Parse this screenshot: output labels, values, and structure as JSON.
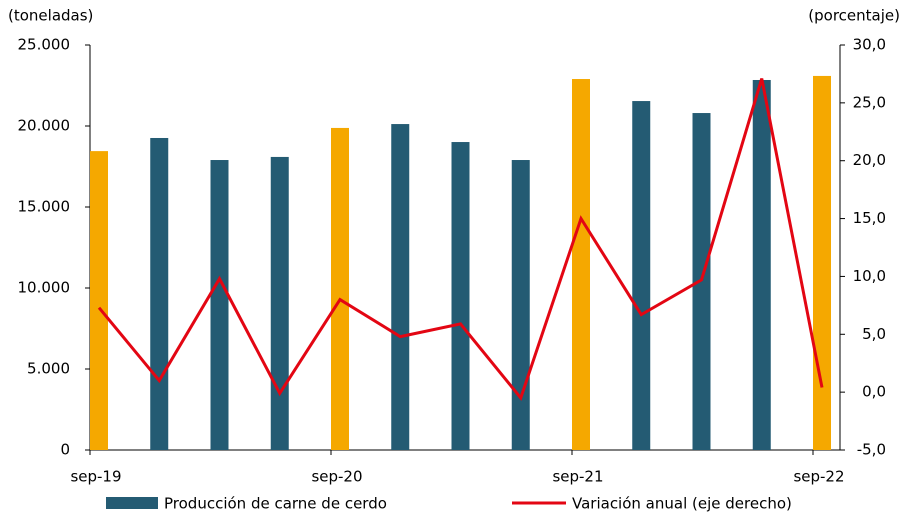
{
  "chart_data": {
    "type": "bar-line",
    "y_label": "(toneladas)",
    "y2_label": "(porcentaje)",
    "categories": [
      "sep-19",
      null,
      null,
      null,
      "sep-20",
      null,
      null,
      null,
      "sep-21",
      null,
      null,
      null,
      "sep-22"
    ],
    "series": [
      {
        "name": "Producción de carne de cerdo",
        "type": "bar",
        "color": "#245b73",
        "bar_colors": [
          "#f5a800",
          "#245b73",
          "#245b73",
          "#245b73",
          "#f5a800",
          "#245b73",
          "#245b73",
          "#245b73",
          "#f5a800",
          "#245b73",
          "#245b73",
          "#245b73",
          "#f5a800"
        ],
        "values": [
          18450,
          19260,
          17900,
          18090,
          19880,
          20120,
          19010,
          17900,
          22900,
          21540,
          20800,
          22840,
          23090
        ]
      },
      {
        "name": "Variación anual (eje derecho)",
        "type": "line",
        "color": "#e30613",
        "axis": "y2",
        "values": [
          7.3,
          1.0,
          9.8,
          -0.1,
          8.0,
          4.8,
          5.9,
          -0.5,
          15.0,
          6.7,
          9.7,
          27.1,
          0.4
        ]
      }
    ],
    "ylim": [
      0,
      25000
    ],
    "yticks": [
      0,
      {
        "value": 5000,
        "label": "5.000"
      },
      {
        "value": 10000,
        "label": "10.000"
      },
      {
        "value": 15000,
        "label": "15.000"
      },
      {
        "value": 20000,
        "label": "20.000"
      },
      {
        "value": 25000,
        "label": "25.000"
      }
    ],
    "y2lim": [
      -5,
      30
    ],
    "y2ticks": [
      {
        "value": -5,
        "label": "-5,0"
      },
      {
        "value": 0,
        "label": "0,0"
      },
      {
        "value": 5,
        "label": "5,0"
      },
      {
        "value": 10,
        "label": "10,0"
      },
      {
        "value": 15,
        "label": "15,0"
      },
      {
        "value": 20,
        "label": "20,0"
      },
      {
        "value": 25,
        "label": "25,0"
      },
      {
        "value": 30,
        "label": "30,0"
      }
    ]
  }
}
